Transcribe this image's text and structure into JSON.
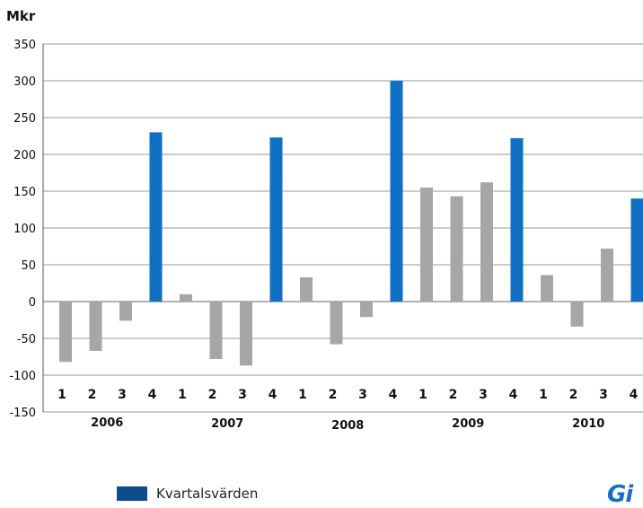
{
  "chart_data": {
    "type": "bar",
    "title": "",
    "ylabel": "Mkr",
    "ylim": [
      -150,
      350
    ],
    "yticks": [
      "350",
      "300",
      "250",
      "200",
      "150",
      "100",
      "50",
      "0",
      "-50",
      "-100",
      "-150"
    ],
    "grid": true,
    "years": [
      "2006",
      "2007",
      "2008",
      "2009",
      "2010"
    ],
    "categories": [
      "1",
      "2",
      "3",
      "4",
      "1",
      "2",
      "3",
      "4",
      "1",
      "2",
      "3",
      "4",
      "1",
      "2",
      "3",
      "4",
      "1",
      "2",
      "3",
      "4"
    ],
    "values": [
      -82,
      -67,
      -26,
      230,
      10,
      -78,
      -87,
      223,
      33,
      -58,
      -21,
      300,
      155,
      143,
      162,
      222,
      36,
      -34,
      72,
      140
    ],
    "bar_colors": [
      "#a6a6a6",
      "#a6a6a6",
      "#a6a6a6",
      "#1170c4",
      "#a6a6a6",
      "#a6a6a6",
      "#a6a6a6",
      "#1170c4",
      "#a6a6a6",
      "#a6a6a6",
      "#a6a6a6",
      "#1170c4",
      "#a6a6a6",
      "#a6a6a6",
      "#a6a6a6",
      "#1170c4",
      "#a6a6a6",
      "#a6a6a6",
      "#a6a6a6",
      "#1170c4"
    ],
    "legend": [
      {
        "label": "Kvartalsvärden",
        "color": "#0f4c8c"
      }
    ]
  },
  "logo_text": "Gi"
}
